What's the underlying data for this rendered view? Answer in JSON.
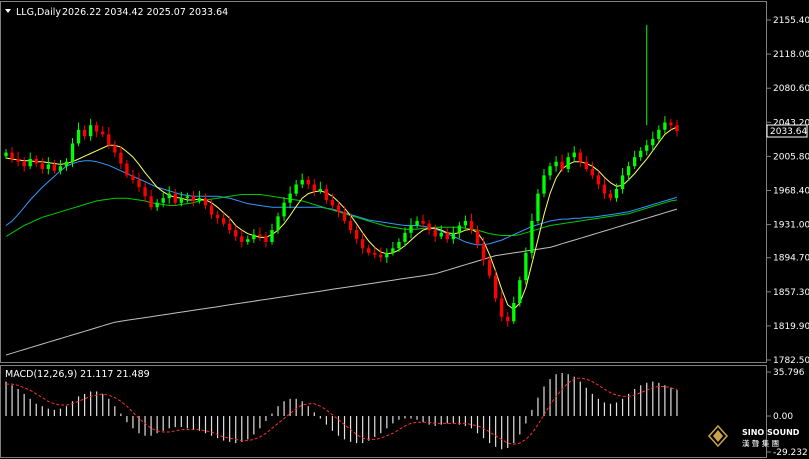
{
  "window": {
    "header_title": "LLG,Daily",
    "ohlc_text": "2026.22 2034.42 2025.07 2033.64"
  },
  "price_axis": {
    "labels": [
      "2155.40",
      "2118.00",
      "2080.60",
      "2043.20",
      "2005.80",
      "1968.40",
      "1931.00",
      "1894.70",
      "1857.30",
      "1819.90",
      "1782.50"
    ],
    "current_price": "2033.64",
    "current_price_color": "#ffffff"
  },
  "macd": {
    "title": "MACD(12,26,9) 21.117 21.489",
    "axis_labels": [
      "35.796",
      "0.00",
      "-29.232"
    ]
  },
  "watermark": {
    "brand_line1": "SINO SOUND",
    "brand_line2": "漢 聲 集 團"
  },
  "colors": {
    "background": "#000000",
    "grid": "#404040",
    "bull": "#00ff00",
    "bear": "#ff0000",
    "ma_fast": "#ffff66",
    "ma_mid": "#00cc00",
    "ma_slow": "#3399ff",
    "ma_long": "#c0c0c0",
    "signal": "#ff3030"
  },
  "chart_data": {
    "type": "candlestick",
    "instrument": "LLG",
    "timeframe": "Daily",
    "last_bar": {
      "open": 2026.22,
      "high": 2034.42,
      "low": 2025.07,
      "close": 2033.64
    },
    "ylim": [
      1782.5,
      2155.4
    ],
    "closes": [
      2010,
      2003,
      2000,
      1995,
      2003,
      1998,
      1992,
      1997,
      1990,
      1995,
      2000,
      2020,
      2035,
      2028,
      2040,
      2033,
      2030,
      2018,
      2010,
      1998,
      1985,
      1980,
      1972,
      1962,
      1950,
      1955,
      1960,
      1965,
      1955,
      1960,
      1962,
      1957,
      1960,
      1952,
      1942,
      1938,
      1932,
      1925,
      1918,
      1912,
      1915,
      1920,
      1918,
      1912,
      1925,
      1940,
      1955,
      1965,
      1975,
      1980,
      1975,
      1968,
      1970,
      1958,
      1952,
      1945,
      1935,
      1925,
      1915,
      1905,
      1900,
      1898,
      1895,
      1900,
      1905,
      1912,
      1922,
      1930,
      1935,
      1932,
      1925,
      1918,
      1922,
      1915,
      1922,
      1930,
      1935,
      1925,
      1910,
      1892,
      1875,
      1850,
      1830,
      1825,
      1845,
      1870,
      1900,
      1935,
      1965,
      1985,
      1995,
      2000,
      1992,
      2005,
      2010,
      2000,
      1992,
      1985,
      1975,
      1965,
      1960,
      1970,
      1985,
      1995,
      2005,
      2012,
      2018,
      2025,
      2035,
      2043,
      2040,
      2033.64
    ],
    "ma_fast": [
      2004,
      2003,
      2002,
      2001,
      2001,
      2000,
      2000,
      1999,
      1998,
      1997,
      1998,
      2000,
      2003,
      2006,
      2009,
      2012,
      2015,
      2018,
      2018,
      2016,
      2011,
      2005,
      1997,
      1988,
      1980,
      1972,
      1967,
      1963,
      1961,
      1960,
      1958,
      1958,
      1959,
      1958,
      1955,
      1950,
      1944,
      1938,
      1930,
      1925,
      1921,
      1919,
      1917,
      1917,
      1920,
      1925,
      1932,
      1941,
      1951,
      1960,
      1965,
      1967,
      1968,
      1966,
      1962,
      1956,
      1949,
      1941,
      1932,
      1922,
      1913,
      1906,
      1901,
      1899,
      1900,
      1903,
      1908,
      1914,
      1920,
      1925,
      1927,
      1927,
      1925,
      1922,
      1921,
      1922,
      1925,
      1926,
      1922,
      1913,
      1898,
      1880,
      1860,
      1843,
      1838,
      1845,
      1862,
      1888,
      1915,
      1942,
      1965,
      1982,
      1992,
      1997,
      2000,
      2000,
      1998,
      1995,
      1990,
      1983,
      1977,
      1973,
      1974,
      1980,
      1987,
      1995,
      2003,
      2012,
      2021,
      2030,
      2035,
      2038
    ],
    "ma_mid": [
      1918,
      1922,
      1926,
      1930,
      1933,
      1936,
      1939,
      1941,
      1943,
      1945,
      1947,
      1949,
      1951,
      1953,
      1955,
      1957,
      1958,
      1959,
      1960,
      1960,
      1960,
      1959,
      1958,
      1957,
      1955,
      1954,
      1953,
      1952,
      1952,
      1953,
      1954,
      1955,
      1957,
      1958,
      1959,
      1960,
      1961,
      1962,
      1963,
      1964,
      1964,
      1964,
      1964,
      1963,
      1962,
      1961,
      1960,
      1959,
      1958,
      1957,
      1955,
      1953,
      1951,
      1949,
      1947,
      1945,
      1943,
      1941,
      1939,
      1937,
      1935,
      1933,
      1931,
      1929,
      1928,
      1927,
      1926,
      1926,
      1926,
      1927,
      1927,
      1928,
      1928,
      1928,
      1928,
      1928,
      1927,
      1926,
      1925,
      1923,
      1921,
      1920,
      1919,
      1919,
      1919,
      1920,
      1922,
      1924,
      1926,
      1928,
      1930,
      1931,
      1932,
      1933,
      1934,
      1935,
      1936,
      1937,
      1938,
      1939,
      1940,
      1941,
      1942,
      1943,
      1945,
      1947,
      1949,
      1951,
      1953,
      1955,
      1957,
      1958
    ],
    "ma_slow": [
      1930,
      1935,
      1942,
      1950,
      1958,
      1965,
      1972,
      1978,
      1984,
      1990,
      1995,
      1998,
      2000,
      2001,
      2001,
      2000,
      1998,
      1996,
      1993,
      1990,
      1987,
      1984,
      1981,
      1978,
      1975,
      1972,
      1970,
      1968,
      1966,
      1964,
      1963,
      1962,
      1962,
      1962,
      1962,
      1962,
      1961,
      1960,
      1958,
      1956,
      1954,
      1953,
      1952,
      1951,
      1950,
      1950,
      1950,
      1950,
      1950,
      1950,
      1950,
      1950,
      1950,
      1949,
      1948,
      1946,
      1944,
      1942,
      1940,
      1938,
      1936,
      1935,
      1934,
      1933,
      1932,
      1931,
      1930,
      1930,
      1930,
      1929,
      1928,
      1926,
      1924,
      1921,
      1918,
      1915,
      1912,
      1910,
      1909,
      1909,
      1910,
      1912,
      1914,
      1917,
      1920,
      1923,
      1926,
      1929,
      1931,
      1933,
      1935,
      1936,
      1937,
      1937,
      1938,
      1938,
      1939,
      1939,
      1940,
      1941,
      1942,
      1943,
      1944,
      1945,
      1947,
      1949,
      1951,
      1953,
      1955,
      1957,
      1959,
      1961
    ],
    "ma_long": [
      1788,
      1790,
      1792,
      1794,
      1796,
      1798,
      1800,
      1802,
      1804,
      1806,
      1808,
      1810,
      1812,
      1814,
      1816,
      1818,
      1820,
      1822,
      1824,
      1825,
      1826,
      1827,
      1828,
      1829,
      1830,
      1831,
      1832,
      1833,
      1834,
      1835,
      1836,
      1837,
      1838,
      1839,
      1840,
      1841,
      1842,
      1843,
      1844,
      1845,
      1846,
      1847,
      1848,
      1849,
      1850,
      1851,
      1852,
      1853,
      1854,
      1855,
      1856,
      1857,
      1858,
      1859,
      1860,
      1861,
      1862,
      1863,
      1864,
      1865,
      1866,
      1867,
      1868,
      1869,
      1870,
      1871,
      1872,
      1873,
      1874,
      1875,
      1876,
      1877,
      1879,
      1881,
      1883,
      1885,
      1887,
      1889,
      1891,
      1893,
      1895,
      1897,
      1898,
      1899,
      1900,
      1901,
      1902,
      1903,
      1904,
      1905,
      1906,
      1908,
      1910,
      1912,
      1914,
      1916,
      1918,
      1920,
      1922,
      1924,
      1926,
      1928,
      1930,
      1932,
      1934,
      1936,
      1938,
      1940,
      1942,
      1944,
      1946,
      1948
    ],
    "macd_hist": [
      28,
      25,
      22,
      18,
      14,
      10,
      8,
      6,
      5,
      6,
      8,
      12,
      16,
      18,
      20,
      20,
      18,
      14,
      8,
      2,
      -5,
      -10,
      -14,
      -16,
      -16,
      -14,
      -12,
      -10,
      -9,
      -9,
      -10,
      -11,
      -12,
      -14,
      -16,
      -18,
      -20,
      -21,
      -22,
      -21,
      -19,
      -15,
      -10,
      -4,
      2,
      8,
      12,
      14,
      14,
      12,
      8,
      3,
      -2,
      -7,
      -12,
      -16,
      -19,
      -21,
      -22,
      -22,
      -20,
      -17,
      -14,
      -10,
      -6,
      -3,
      -2,
      -2,
      -3,
      -5,
      -7,
      -8,
      -7,
      -6,
      -6,
      -7,
      -8,
      -10,
      -14,
      -18,
      -22,
      -25,
      -27,
      -26,
      -22,
      -15,
      -6,
      5,
      15,
      24,
      30,
      34,
      35,
      34,
      32,
      28,
      23,
      18,
      14,
      11,
      10,
      11,
      14,
      18,
      22,
      25,
      27,
      28,
      27,
      25,
      23,
      21.117
    ],
    "macd_signal": [
      26,
      26,
      25,
      23,
      21,
      18,
      15,
      12,
      10,
      9,
      9,
      10,
      12,
      14,
      16,
      17,
      18,
      17,
      15,
      12,
      8,
      3,
      -2,
      -6,
      -10,
      -12,
      -13,
      -13,
      -12,
      -11,
      -11,
      -11,
      -11,
      -12,
      -13,
      -15,
      -17,
      -18,
      -19,
      -20,
      -20,
      -19,
      -17,
      -14,
      -10,
      -6,
      -2,
      2,
      6,
      9,
      10,
      10,
      8,
      5,
      1,
      -3,
      -7,
      -11,
      -15,
      -18,
      -19,
      -19,
      -18,
      -16,
      -14,
      -11,
      -8,
      -6,
      -5,
      -5,
      -5,
      -6,
      -6,
      -6,
      -6,
      -6,
      -6,
      -7,
      -8,
      -10,
      -13,
      -16,
      -19,
      -22,
      -23,
      -22,
      -19,
      -14,
      -7,
      1,
      9,
      16,
      22,
      27,
      30,
      31,
      30,
      28,
      25,
      22,
      19,
      17,
      16,
      16,
      17,
      19,
      21,
      23,
      24,
      24,
      23,
      21.489
    ],
    "macd_ylim": [
      -29.232,
      35.796
    ]
  }
}
